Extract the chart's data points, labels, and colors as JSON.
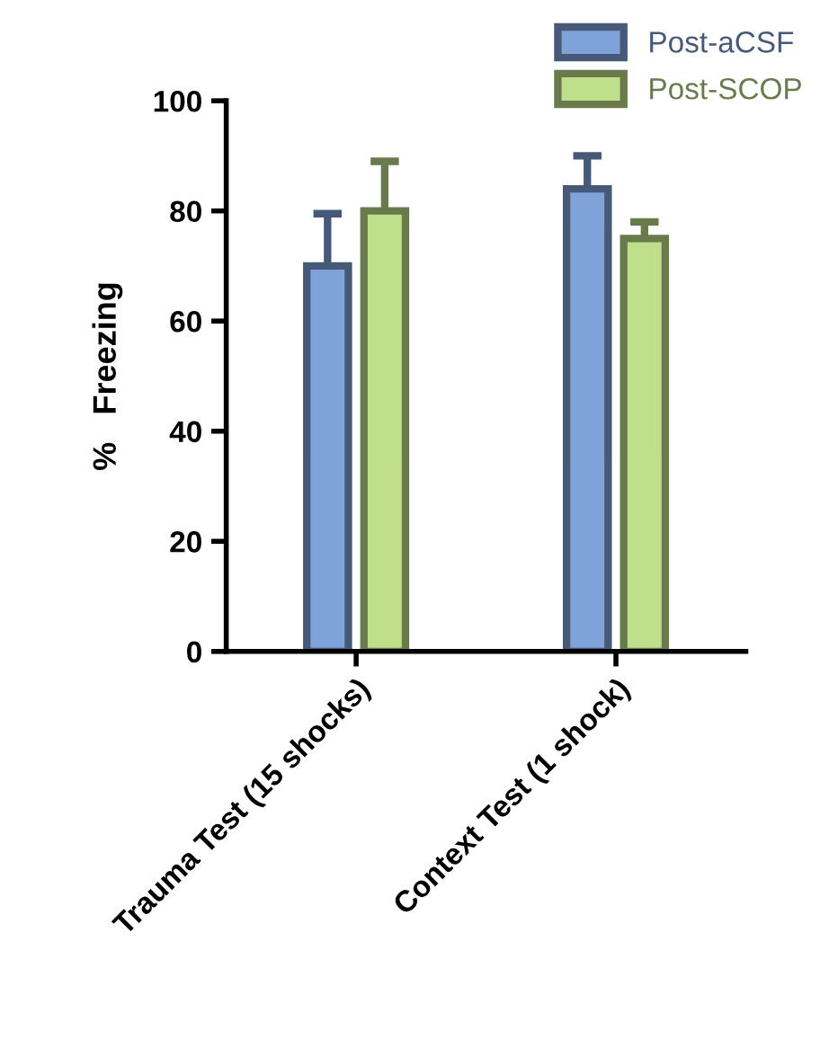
{
  "chart_data": {
    "type": "bar",
    "ylabel": "%   Freezing",
    "categories": [
      "Trauma Test (15 shocks)",
      "Context Test (1 shock)"
    ],
    "series": [
      {
        "name": "Post-aCSF",
        "color": "#7fa3d8",
        "values": [
          70,
          84
        ],
        "errors": [
          [
            70,
            79.5
          ],
          [
            84,
            90
          ]
        ]
      },
      {
        "name": "Post-SCOP",
        "color": "#bfdf8a",
        "values": [
          80,
          75
        ],
        "errors": [
          [
            80,
            89
          ],
          [
            75,
            78
          ]
        ]
      }
    ],
    "ylim": [
      0,
      100
    ],
    "yticks": [
      0,
      20,
      40,
      60,
      80,
      100
    ],
    "grid": false,
    "legend": "top right"
  }
}
